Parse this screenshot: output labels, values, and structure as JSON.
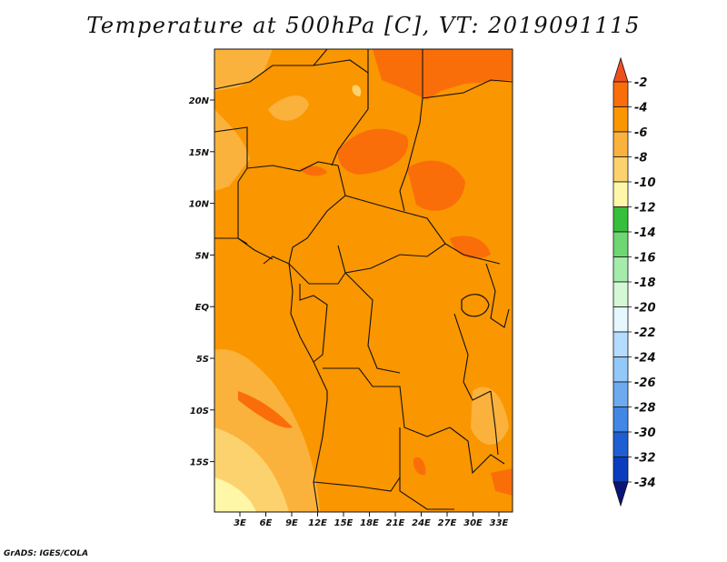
{
  "title": "Temperature at 500hPa [C], VT: 2019091115",
  "credit": "GrADS: IGES/COLA",
  "map": {
    "lat_ticks": [
      "20N",
      "15N",
      "10N",
      "5N",
      "EQ",
      "5S",
      "10S",
      "15S"
    ],
    "lon_ticks": [
      "3E",
      "6E",
      "9E",
      "12E",
      "15E",
      "18E",
      "21E",
      "24E",
      "27E",
      "30E",
      "33E"
    ]
  },
  "colorbar": {
    "labels": [
      "-2",
      "-4",
      "-6",
      "-8",
      "-10",
      "-12",
      "-14",
      "-16",
      "-18",
      "-20",
      "-22",
      "-24",
      "-26",
      "-28",
      "-30",
      "-32",
      "-34"
    ],
    "colors": [
      "#f0501e",
      "#fa6e0a",
      "#fa9600",
      "#fbb23c",
      "#fcd26e",
      "#fff7a8",
      "#36bf3b",
      "#6ed773",
      "#a5ebaa",
      "#d4f7d4",
      "#e6f7ff",
      "#b4dcff",
      "#92c8fa",
      "#6eaaf0",
      "#4187e6",
      "#1e5ed2",
      "#0a3cbe",
      "#0a1478"
    ]
  }
}
